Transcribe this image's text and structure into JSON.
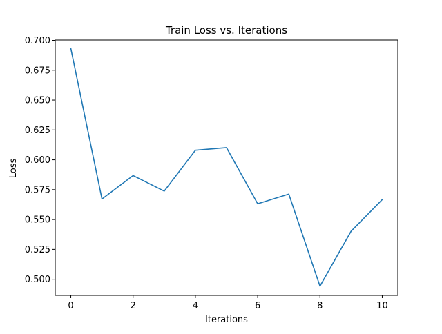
{
  "chart_data": {
    "type": "line",
    "title": "Train Loss vs. Iterations",
    "xlabel": "Iterations",
    "ylabel": "Loss",
    "xlim": [
      -0.5,
      10.5
    ],
    "ylim": [
      0.4865,
      0.7003
    ],
    "x_ticks": [
      0,
      2,
      4,
      6,
      8,
      10
    ],
    "y_ticks": [
      0.5,
      0.525,
      0.55,
      0.575,
      0.6,
      0.625,
      0.65,
      0.675,
      0.7
    ],
    "x_tick_labels": [
      "0",
      "2",
      "4",
      "6",
      "8",
      "10"
    ],
    "y_tick_labels": [
      "0.500",
      "0.525",
      "0.550",
      "0.575",
      "0.600",
      "0.625",
      "0.650",
      "0.675",
      "0.700"
    ],
    "grid": false,
    "legend": "none",
    "series": [
      {
        "color": "#1f77b4",
        "x": [
          0,
          1,
          2,
          3,
          4,
          5,
          6,
          7,
          8,
          9,
          10
        ],
        "y": [
          0.6932,
          0.5672,
          0.5868,
          0.5738,
          0.608,
          0.6102,
          0.5632,
          0.5713,
          0.4942,
          0.5402,
          0.5667
        ]
      }
    ]
  }
}
